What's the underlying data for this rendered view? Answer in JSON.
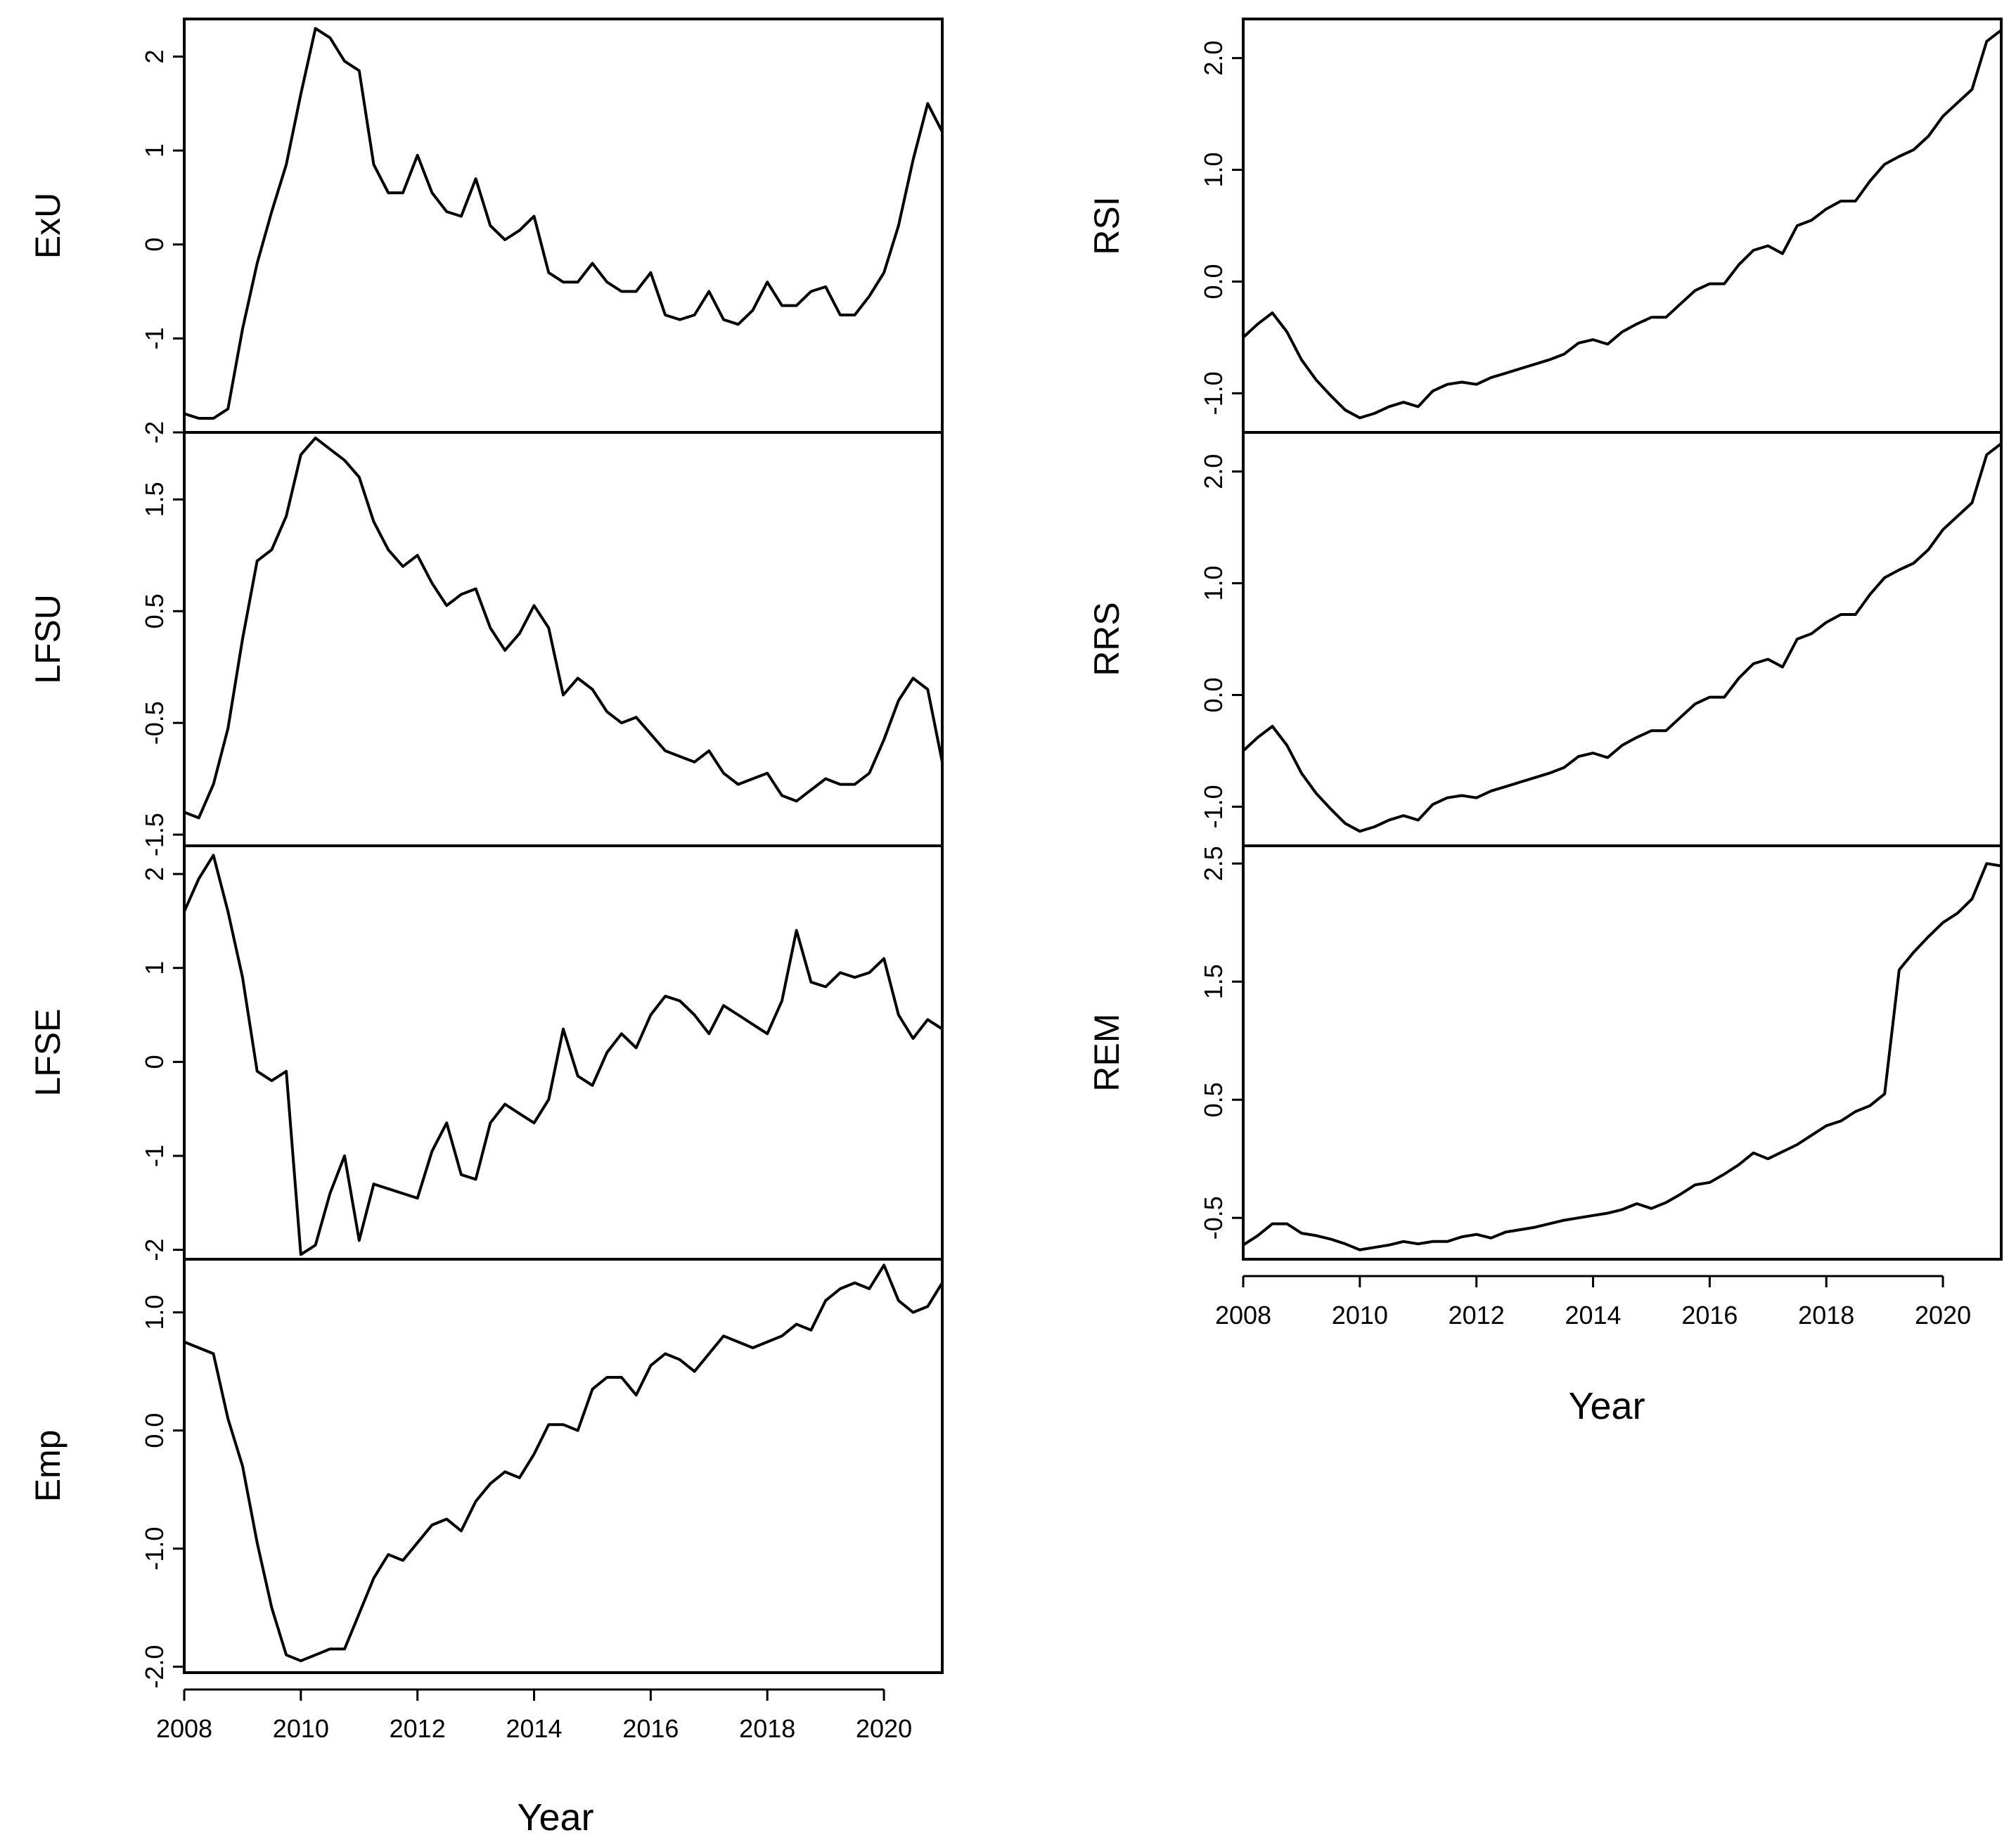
{
  "chart_data": [
    {
      "type": "line",
      "ylabel": "ExU",
      "xlim": [
        2008,
        2021
      ],
      "ylim": [
        -2,
        2.4
      ],
      "yticks": [
        {
          "v": 2,
          "t": "2"
        },
        {
          "v": 1,
          "t": "1"
        },
        {
          "v": 0,
          "t": "0"
        },
        {
          "v": -1,
          "t": "-1"
        },
        {
          "v": -2,
          "t": "-2"
        }
      ],
      "x": [
        2008,
        2008.25,
        2008.5,
        2008.75,
        2009,
        2009.25,
        2009.5,
        2009.75,
        2010,
        2010.25,
        2010.5,
        2010.75,
        2011,
        2011.25,
        2011.5,
        2011.75,
        2012,
        2012.25,
        2012.5,
        2012.75,
        2013,
        2013.25,
        2013.5,
        2013.75,
        2014,
        2014.25,
        2014.5,
        2014.75,
        2015,
        2015.25,
        2015.5,
        2015.75,
        2016,
        2016.25,
        2016.5,
        2016.75,
        2017,
        2017.25,
        2017.5,
        2017.75,
        2018,
        2018.25,
        2018.5,
        2018.75,
        2019,
        2019.25,
        2019.5,
        2019.75,
        2020,
        2020.25,
        2020.5,
        2020.75,
        2021
      ],
      "values": [
        -1.8,
        -1.85,
        -1.85,
        -1.75,
        -0.9,
        -0.2,
        0.35,
        0.85,
        1.6,
        2.3,
        2.2,
        1.95,
        1.85,
        0.85,
        0.55,
        0.55,
        0.95,
        0.55,
        0.35,
        0.3,
        0.7,
        0.2,
        0.05,
        0.15,
        0.3,
        -0.3,
        -0.4,
        -0.4,
        -0.2,
        -0.4,
        -0.5,
        -0.5,
        -0.3,
        -0.75,
        -0.8,
        -0.75,
        -0.5,
        -0.8,
        -0.85,
        -0.7,
        -0.4,
        -0.65,
        -0.65,
        -0.5,
        -0.45,
        -0.75,
        -0.75,
        -0.55,
        -0.3,
        0.2,
        0.9,
        1.5,
        1.2
      ]
    },
    {
      "type": "line",
      "ylabel": "LFSU",
      "xlim": [
        2008,
        2021
      ],
      "ylim": [
        -1.6,
        2.1
      ],
      "yticks": [
        {
          "v": 1.5,
          "t": "1.5"
        },
        {
          "v": 0.5,
          "t": "0.5"
        },
        {
          "v": -0.5,
          "t": "-0.5"
        },
        {
          "v": -1.5,
          "t": "-1.5"
        }
      ],
      "x": [
        2008,
        2008.25,
        2008.5,
        2008.75,
        2009,
        2009.25,
        2009.5,
        2009.75,
        2010,
        2010.25,
        2010.5,
        2010.75,
        2011,
        2011.25,
        2011.5,
        2011.75,
        2012,
        2012.25,
        2012.5,
        2012.75,
        2013,
        2013.25,
        2013.5,
        2013.75,
        2014,
        2014.25,
        2014.5,
        2014.75,
        2015,
        2015.25,
        2015.5,
        2015.75,
        2016,
        2016.25,
        2016.5,
        2016.75,
        2017,
        2017.25,
        2017.5,
        2017.75,
        2018,
        2018.25,
        2018.5,
        2018.75,
        2019,
        2019.25,
        2019.5,
        2019.75,
        2020,
        2020.25,
        2020.5,
        2020.75,
        2021
      ],
      "values": [
        -1.3,
        -1.35,
        -1.05,
        -0.55,
        0.25,
        0.95,
        1.05,
        1.35,
        1.9,
        2.05,
        1.95,
        1.85,
        1.7,
        1.3,
        1.05,
        0.9,
        1.0,
        0.75,
        0.55,
        0.65,
        0.7,
        0.35,
        0.15,
        0.3,
        0.55,
        0.35,
        -0.25,
        -0.1,
        -0.2,
        -0.4,
        -0.5,
        -0.45,
        -0.6,
        -0.75,
        -0.8,
        -0.85,
        -0.75,
        -0.95,
        -1.05,
        -1.0,
        -0.95,
        -1.15,
        -1.2,
        -1.1,
        -1.0,
        -1.05,
        -1.05,
        -0.95,
        -0.65,
        -0.3,
        -0.1,
        -0.2,
        -0.85
      ]
    },
    {
      "type": "line",
      "ylabel": "LFSE",
      "xlim": [
        2008,
        2021
      ],
      "ylim": [
        -2.1,
        2.3
      ],
      "yticks": [
        {
          "v": 2,
          "t": "2"
        },
        {
          "v": 1,
          "t": "1"
        },
        {
          "v": 0,
          "t": "0"
        },
        {
          "v": -1,
          "t": "-1"
        },
        {
          "v": -2,
          "t": "-2"
        }
      ],
      "x": [
        2008,
        2008.25,
        2008.5,
        2008.75,
        2009,
        2009.25,
        2009.5,
        2009.75,
        2010,
        2010.25,
        2010.5,
        2010.75,
        2011,
        2011.25,
        2011.5,
        2011.75,
        2012,
        2012.25,
        2012.5,
        2012.75,
        2013,
        2013.25,
        2013.5,
        2013.75,
        2014,
        2014.25,
        2014.5,
        2014.75,
        2015,
        2015.25,
        2015.5,
        2015.75,
        2016,
        2016.25,
        2016.5,
        2016.75,
        2017,
        2017.25,
        2017.5,
        2017.75,
        2018,
        2018.25,
        2018.5,
        2018.75,
        2019,
        2019.25,
        2019.5,
        2019.75,
        2020,
        2020.25,
        2020.5,
        2020.75,
        2021
      ],
      "values": [
        1.6,
        1.95,
        2.2,
        1.6,
        0.9,
        -0.1,
        -0.2,
        -0.1,
        -2.05,
        -1.95,
        -1.4,
        -1.0,
        -1.9,
        -1.3,
        -1.35,
        -1.4,
        -1.45,
        -0.95,
        -0.65,
        -1.2,
        -1.25,
        -0.65,
        -0.45,
        -0.55,
        -0.65,
        -0.4,
        0.35,
        -0.15,
        -0.25,
        0.1,
        0.3,
        0.15,
        0.5,
        0.7,
        0.65,
        0.5,
        0.3,
        0.6,
        0.5,
        0.4,
        0.3,
        0.65,
        1.4,
        0.85,
        0.8,
        0.95,
        0.9,
        0.95,
        1.1,
        0.5,
        0.25,
        0.45,
        0.35
      ]
    },
    {
      "type": "line",
      "ylabel": "Emp",
      "xlim": [
        2008,
        2021
      ],
      "ylim": [
        -2.05,
        1.45
      ],
      "yticks": [
        {
          "v": 1.0,
          "t": "1.0"
        },
        {
          "v": 0.0,
          "t": "0.0"
        },
        {
          "v": -1.0,
          "t": "-1.0"
        },
        {
          "v": -2.0,
          "t": "-2.0"
        }
      ],
      "x": [
        2008,
        2008.25,
        2008.5,
        2008.75,
        2009,
        2009.25,
        2009.5,
        2009.75,
        2010,
        2010.25,
        2010.5,
        2010.75,
        2011,
        2011.25,
        2011.5,
        2011.75,
        2012,
        2012.25,
        2012.5,
        2012.75,
        2013,
        2013.25,
        2013.5,
        2013.75,
        2014,
        2014.25,
        2014.5,
        2014.75,
        2015,
        2015.25,
        2015.5,
        2015.75,
        2016,
        2016.25,
        2016.5,
        2016.75,
        2017,
        2017.25,
        2017.5,
        2017.75,
        2018,
        2018.25,
        2018.5,
        2018.75,
        2019,
        2019.25,
        2019.5,
        2019.75,
        2020,
        2020.25,
        2020.5,
        2020.75,
        2021
      ],
      "values": [
        0.75,
        0.7,
        0.65,
        0.1,
        -0.3,
        -0.95,
        -1.5,
        -1.9,
        -1.95,
        -1.9,
        -1.85,
        -1.85,
        -1.55,
        -1.25,
        -1.05,
        -1.1,
        -0.95,
        -0.8,
        -0.75,
        -0.85,
        -0.6,
        -0.45,
        -0.35,
        -0.4,
        -0.2,
        0.05,
        0.05,
        0.0,
        0.35,
        0.45,
        0.45,
        0.3,
        0.55,
        0.65,
        0.6,
        0.5,
        0.65,
        0.8,
        0.75,
        0.7,
        0.75,
        0.8,
        0.9,
        0.85,
        1.1,
        1.2,
        1.25,
        1.2,
        1.4,
        1.1,
        1.0,
        1.05,
        1.25
      ]
    },
    {
      "type": "line",
      "ylabel": "RSI",
      "xlim": [
        2008,
        2021
      ],
      "ylim": [
        -1.35,
        2.35
      ],
      "yticks": [
        {
          "v": 2.0,
          "t": "2.0"
        },
        {
          "v": 1.0,
          "t": "1.0"
        },
        {
          "v": 0.0,
          "t": "0.0"
        },
        {
          "v": -1.0,
          "t": "-1.0"
        }
      ],
      "x": [
        2008,
        2008.25,
        2008.5,
        2008.75,
        2009,
        2009.25,
        2009.5,
        2009.75,
        2010,
        2010.25,
        2010.5,
        2010.75,
        2011,
        2011.25,
        2011.5,
        2011.75,
        2012,
        2012.25,
        2012.5,
        2012.75,
        2013,
        2013.25,
        2013.5,
        2013.75,
        2014,
        2014.25,
        2014.5,
        2014.75,
        2015,
        2015.25,
        2015.5,
        2015.75,
        2016,
        2016.25,
        2016.5,
        2016.75,
        2017,
        2017.25,
        2017.5,
        2017.75,
        2018,
        2018.25,
        2018.5,
        2018.75,
        2019,
        2019.25,
        2019.5,
        2019.75,
        2020,
        2020.25,
        2020.5,
        2020.75,
        2021
      ],
      "values": [
        -0.5,
        -0.38,
        -0.28,
        -0.45,
        -0.7,
        -0.88,
        -1.02,
        -1.15,
        -1.22,
        -1.18,
        -1.12,
        -1.08,
        -1.12,
        -0.98,
        -0.92,
        -0.9,
        -0.92,
        -0.86,
        -0.82,
        -0.78,
        -0.74,
        -0.7,
        -0.65,
        -0.55,
        -0.52,
        -0.56,
        -0.45,
        -0.38,
        -0.32,
        -0.32,
        -0.2,
        -0.08,
        -0.02,
        -0.02,
        0.15,
        0.28,
        0.32,
        0.25,
        0.5,
        0.55,
        0.65,
        0.72,
        0.72,
        0.9,
        1.05,
        1.12,
        1.18,
        1.3,
        1.48,
        1.6,
        1.72,
        2.15,
        2.25
      ]
    },
    {
      "type": "line",
      "ylabel": "RRS",
      "xlim": [
        2008,
        2021
      ],
      "ylim": [
        -1.35,
        2.35
      ],
      "yticks": [
        {
          "v": 2.0,
          "t": "2.0"
        },
        {
          "v": 1.0,
          "t": "1.0"
        },
        {
          "v": 0.0,
          "t": "0.0"
        },
        {
          "v": -1.0,
          "t": "-1.0"
        }
      ],
      "x": [
        2008,
        2008.25,
        2008.5,
        2008.75,
        2009,
        2009.25,
        2009.5,
        2009.75,
        2010,
        2010.25,
        2010.5,
        2010.75,
        2011,
        2011.25,
        2011.5,
        2011.75,
        2012,
        2012.25,
        2012.5,
        2012.75,
        2013,
        2013.25,
        2013.5,
        2013.75,
        2014,
        2014.25,
        2014.5,
        2014.75,
        2015,
        2015.25,
        2015.5,
        2015.75,
        2016,
        2016.25,
        2016.5,
        2016.75,
        2017,
        2017.25,
        2017.5,
        2017.75,
        2018,
        2018.25,
        2018.5,
        2018.75,
        2019,
        2019.25,
        2019.5,
        2019.75,
        2020,
        2020.25,
        2020.5,
        2020.75,
        2021
      ],
      "values": [
        -0.5,
        -0.38,
        -0.28,
        -0.45,
        -0.7,
        -0.88,
        -1.02,
        -1.15,
        -1.22,
        -1.18,
        -1.12,
        -1.08,
        -1.12,
        -0.98,
        -0.92,
        -0.9,
        -0.92,
        -0.86,
        -0.82,
        -0.78,
        -0.74,
        -0.7,
        -0.65,
        -0.55,
        -0.52,
        -0.56,
        -0.45,
        -0.38,
        -0.32,
        -0.32,
        -0.2,
        -0.08,
        -0.02,
        -0.02,
        0.15,
        0.28,
        0.32,
        0.25,
        0.5,
        0.55,
        0.65,
        0.72,
        0.72,
        0.9,
        1.05,
        1.12,
        1.18,
        1.3,
        1.48,
        1.6,
        1.72,
        2.15,
        2.25
      ]
    },
    {
      "type": "line",
      "ylabel": "REM",
      "xlim": [
        2008,
        2021
      ],
      "ylim": [
        -0.85,
        2.65
      ],
      "yticks": [
        {
          "v": 2.5,
          "t": "2.5"
        },
        {
          "v": 1.5,
          "t": "1.5"
        },
        {
          "v": 0.5,
          "t": "0.5"
        },
        {
          "v": -0.5,
          "t": "-0.5"
        }
      ],
      "x": [
        2008,
        2008.25,
        2008.5,
        2008.75,
        2009,
        2009.25,
        2009.5,
        2009.75,
        2010,
        2010.25,
        2010.5,
        2010.75,
        2011,
        2011.25,
        2011.5,
        2011.75,
        2012,
        2012.25,
        2012.5,
        2012.75,
        2013,
        2013.25,
        2013.5,
        2013.75,
        2014,
        2014.25,
        2014.5,
        2014.75,
        2015,
        2015.25,
        2015.5,
        2015.75,
        2016,
        2016.25,
        2016.5,
        2016.75,
        2017,
        2017.25,
        2017.5,
        2017.75,
        2018,
        2018.25,
        2018.5,
        2018.75,
        2019,
        2019.25,
        2019.5,
        2019.75,
        2020,
        2020.25,
        2020.5,
        2020.75,
        2021
      ],
      "values": [
        -0.73,
        -0.65,
        -0.55,
        -0.55,
        -0.63,
        -0.65,
        -0.68,
        -0.72,
        -0.77,
        -0.75,
        -0.73,
        -0.7,
        -0.72,
        -0.7,
        -0.7,
        -0.66,
        -0.64,
        -0.67,
        -0.62,
        -0.6,
        -0.58,
        -0.55,
        -0.52,
        -0.5,
        -0.48,
        -0.46,
        -0.43,
        -0.38,
        -0.42,
        -0.37,
        -0.3,
        -0.22,
        -0.2,
        -0.13,
        -0.05,
        0.05,
        0.0,
        0.06,
        0.12,
        0.2,
        0.28,
        0.32,
        0.4,
        0.45,
        0.55,
        1.6,
        1.75,
        1.88,
        2.0,
        2.08,
        2.2,
        2.5,
        2.48
      ]
    }
  ],
  "shared": {
    "xticks": [
      {
        "v": 2008,
        "t": "2008"
      },
      {
        "v": 2010,
        "t": "2010"
      },
      {
        "v": 2012,
        "t": "2012"
      },
      {
        "v": 2014,
        "t": "2014"
      },
      {
        "v": 2016,
        "t": "2016"
      },
      {
        "v": 2018,
        "t": "2018"
      },
      {
        "v": 2020,
        "t": "2020"
      }
    ],
    "xlabel_left": "Year",
    "xlabel_right": "Year"
  }
}
